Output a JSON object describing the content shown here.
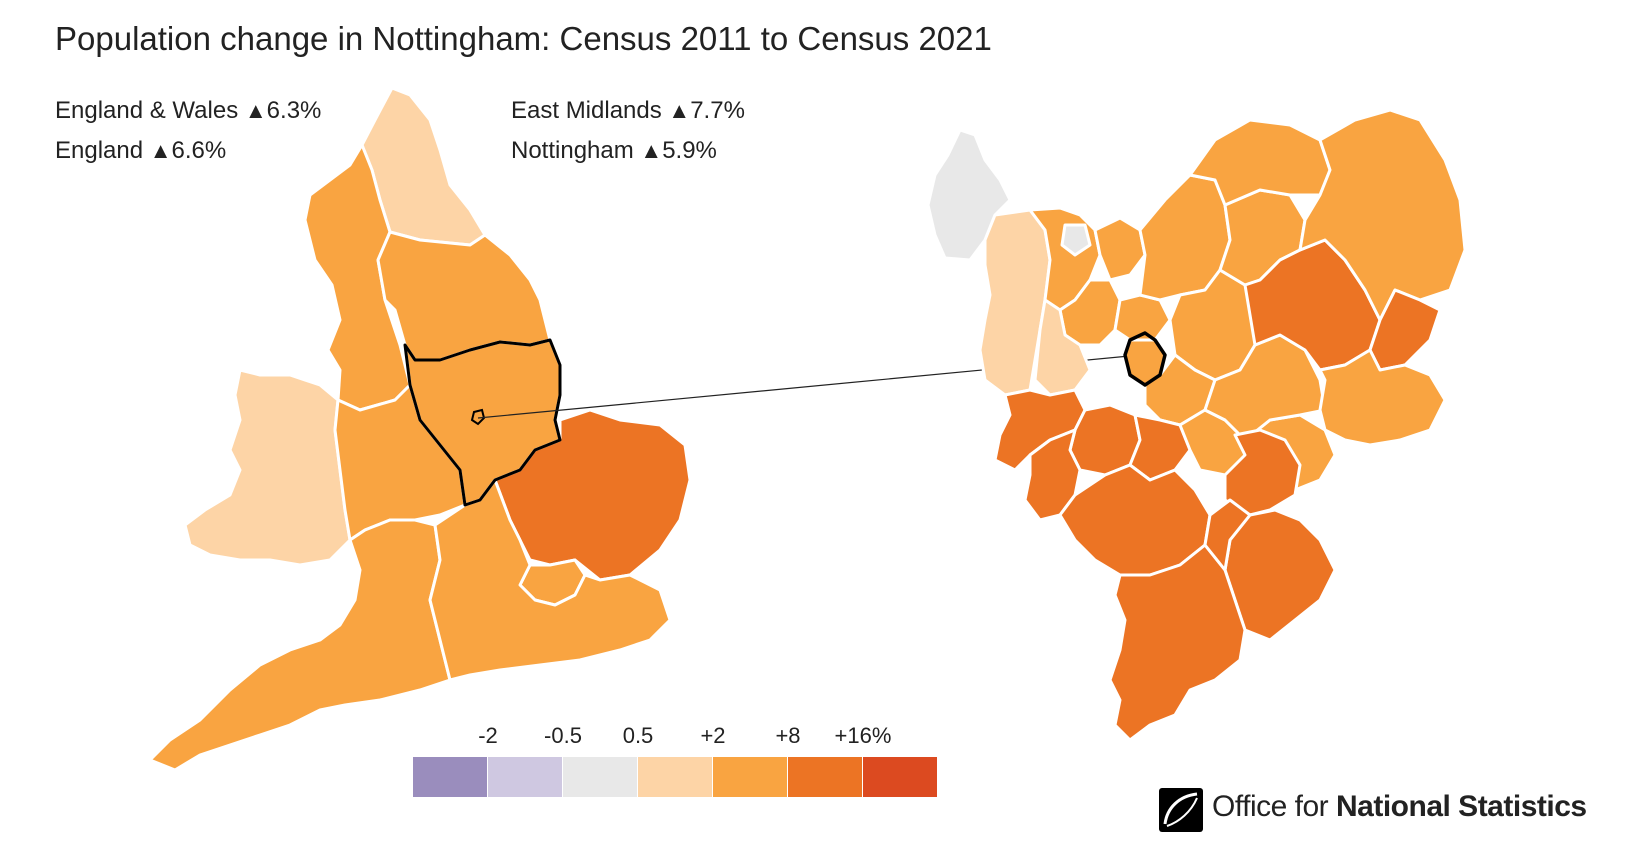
{
  "title": "Population change in Nottingham: Census 2011 to Census 2021",
  "stats": [
    {
      "label": "England & Wales",
      "arrow": "▲",
      "value": "6.3%"
    },
    {
      "label": "England",
      "arrow": "▲",
      "value": "6.6%"
    },
    {
      "label": "East Midlands",
      "arrow": "▲",
      "value": "7.7%"
    },
    {
      "label": "Nottingham",
      "arrow": "▲",
      "value": "5.9%"
    }
  ],
  "legend": {
    "ticks": [
      "-2",
      "-0.5",
      "0.5",
      "+2",
      "+8",
      "+16%"
    ],
    "colors": [
      "#9a8dbd",
      "#cfc8e1",
      "#e8e8e8",
      "#fdd4a6",
      "#f9a441",
      "#ec7424",
      "#dc4a20"
    ]
  },
  "colors": {
    "very_light": "#fdd4a6",
    "medium": "#f9a441",
    "dark": "#ec7424",
    "grey": "#e8e8e8",
    "border": "#ffffff",
    "highlight": "#000000"
  },
  "logo": {
    "prefix": "Office for ",
    "bold": "National Statistics"
  }
}
